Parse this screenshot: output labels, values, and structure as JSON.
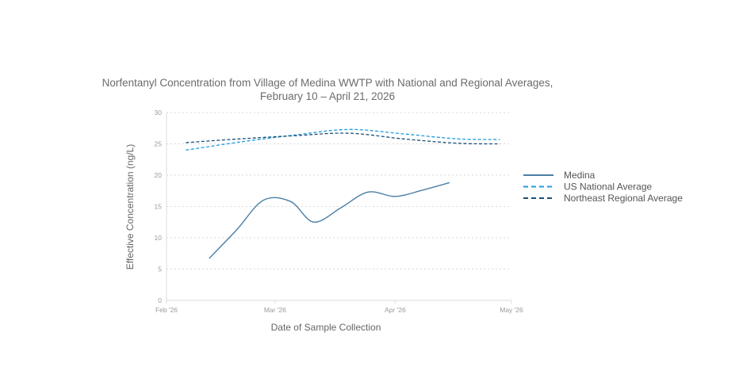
{
  "chart_data": {
    "type": "line",
    "title_line1": "Norfentanyl Concentration from Village of Medina WWTP with National and Regional Averages,",
    "title_line2": "February 10 – April 21, 2026",
    "xlabel": "Date of Sample Collection",
    "ylabel": "Effective Concentration (ng/L)",
    "x_ticks": [
      {
        "label": "Feb '26",
        "date": "2026-02-01"
      },
      {
        "label": "Mar '26",
        "date": "2026-03-01"
      },
      {
        "label": "Apr '26",
        "date": "2026-04-01"
      },
      {
        "label": "May '26",
        "date": "2026-05-01"
      }
    ],
    "y_ticks": [
      "0",
      "5",
      "10",
      "15",
      "20",
      "25",
      "30"
    ],
    "xlim": [
      "2026-02-01",
      "2026-05-01"
    ],
    "ylim": [
      0,
      30
    ],
    "grid": true,
    "legend_position": "right",
    "series": [
      {
        "name": "Medina",
        "color": "#4a7fa6",
        "style": "solid",
        "points": [
          {
            "x": "2026-02-12",
            "y": 6.7
          },
          {
            "x": "2026-02-19",
            "y": 11.2
          },
          {
            "x": "2026-02-26",
            "y": 16.0
          },
          {
            "x": "2026-03-05",
            "y": 15.8
          },
          {
            "x": "2026-03-11",
            "y": 12.5
          },
          {
            "x": "2026-03-18",
            "y": 14.8
          },
          {
            "x": "2026-03-25",
            "y": 17.3
          },
          {
            "x": "2026-04-01",
            "y": 16.6
          },
          {
            "x": "2026-04-08",
            "y": 17.6
          },
          {
            "x": "2026-04-15",
            "y": 18.8
          }
        ]
      },
      {
        "name": "US National Average",
        "color": "#1f9be0",
        "style": "dashed",
        "points": [
          {
            "x": "2026-02-06",
            "y": 24.0
          },
          {
            "x": "2026-02-20",
            "y": 25.3
          },
          {
            "x": "2026-03-06",
            "y": 26.4
          },
          {
            "x": "2026-03-20",
            "y": 27.3
          },
          {
            "x": "2026-04-03",
            "y": 26.6
          },
          {
            "x": "2026-04-17",
            "y": 25.8
          },
          {
            "x": "2026-04-28",
            "y": 25.7
          }
        ]
      },
      {
        "name": "Northeast Regional Average",
        "color": "#1a4f78",
        "style": "dashed",
        "points": [
          {
            "x": "2026-02-06",
            "y": 25.2
          },
          {
            "x": "2026-02-20",
            "y": 25.8
          },
          {
            "x": "2026-03-06",
            "y": 26.3
          },
          {
            "x": "2026-03-20",
            "y": 26.7
          },
          {
            "x": "2026-04-03",
            "y": 25.8
          },
          {
            "x": "2026-04-17",
            "y": 25.1
          },
          {
            "x": "2026-04-28",
            "y": 25.0
          }
        ]
      }
    ]
  }
}
